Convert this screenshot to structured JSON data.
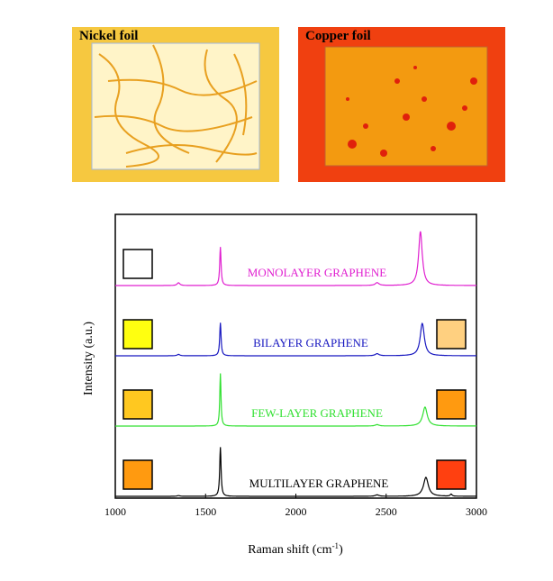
{
  "images": [
    {
      "label": "Nickel foil",
      "base_color": "#fff4c8",
      "feature_color": "#e8a020",
      "border_color": "#f6c840"
    },
    {
      "label": "Copper foil",
      "base_color": "#f39a10",
      "feature_color": "#e0200c",
      "border_color": "#f04010"
    }
  ],
  "chart_data": {
    "type": "line",
    "xlabel": "Raman shift (cm-1)",
    "xlabel_main": "Raman shift (cm",
    "xlabel_sup": "-1",
    "xlabel_end": ")",
    "ylabel": "Intensity (a.u.)",
    "xlim": [
      1000,
      3000
    ],
    "xticks": [
      1000,
      1500,
      2000,
      2500,
      3000
    ],
    "series": [
      {
        "name": "MONOLAYER GRAPHENE",
        "color": "#e020d0",
        "offset": 3,
        "peaks": [
          {
            "x": 1350,
            "h": 0.04,
            "w": 18
          },
          {
            "x": 1582,
            "h": 0.55,
            "w": 9
          },
          {
            "x": 2450,
            "h": 0.04,
            "w": 25
          },
          {
            "x": 2690,
            "h": 0.77,
            "w": 24
          }
        ],
        "left_swatch": "#ffffff",
        "right_swatch": null
      },
      {
        "name": "BILAYER GRAPHENE",
        "color": "#1818c0",
        "offset": 2,
        "peaks": [
          {
            "x": 1350,
            "h": 0.02,
            "w": 18
          },
          {
            "x": 1582,
            "h": 0.47,
            "w": 9
          },
          {
            "x": 2450,
            "h": 0.03,
            "w": 25
          },
          {
            "x": 2700,
            "h": 0.46,
            "w": 27
          }
        ],
        "left_swatch": "#ffff10",
        "right_swatch": "#ffd080"
      },
      {
        "name": "FEW-LAYER GRAPHENE",
        "color": "#30e030",
        "offset": 1,
        "peaks": [
          {
            "x": 1582,
            "h": 0.75,
            "w": 8
          },
          {
            "x": 2450,
            "h": 0.02,
            "w": 25
          },
          {
            "x": 2715,
            "h": 0.27,
            "w": 30
          }
        ],
        "left_swatch": "#ffc820",
        "right_swatch": "#ff9a10"
      },
      {
        "name": "MULTILAYER GRAPHENE",
        "color": "#000000",
        "offset": 0,
        "peaks": [
          {
            "x": 1350,
            "h": 0.01,
            "w": 18
          },
          {
            "x": 1582,
            "h": 0.7,
            "w": 9
          },
          {
            "x": 2450,
            "h": 0.02,
            "w": 25
          },
          {
            "x": 2720,
            "h": 0.27,
            "w": 32
          },
          {
            "x": 2860,
            "h": 0.03,
            "w": 12
          }
        ],
        "left_swatch": "#ff9a10",
        "right_swatch": "#ff4010"
      }
    ]
  }
}
